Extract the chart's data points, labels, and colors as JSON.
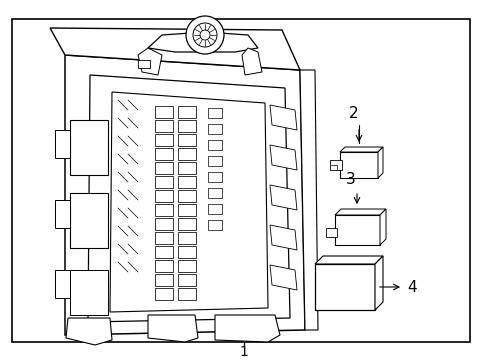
{
  "background_color": "#ffffff",
  "border_color": "#000000",
  "line_color": "#000000",
  "text_color": "#000000",
  "title": "1",
  "labels": [
    "2",
    "3",
    "4"
  ],
  "figsize": [
    4.89,
    3.6
  ],
  "dpi": 100
}
